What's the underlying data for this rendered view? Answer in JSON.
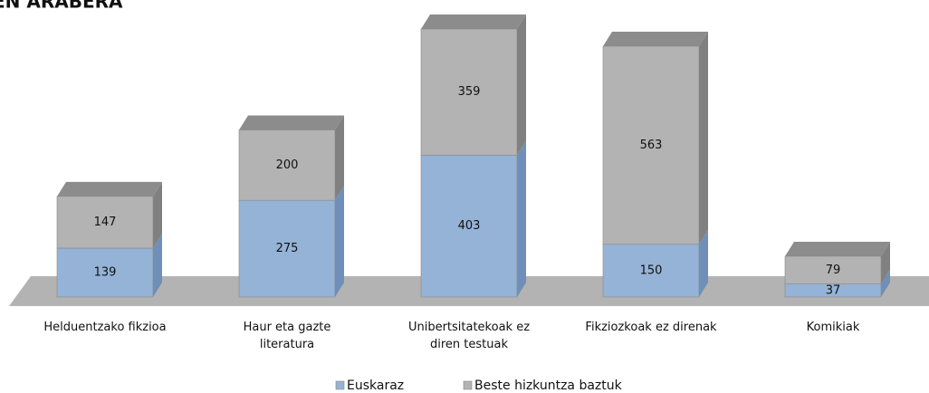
{
  "chart_data": {
    "type": "stacked-bar-3d",
    "title": "EN ARABERA",
    "categories": [
      "Helduentzako fikzioa",
      "Haur eta gazte literatura",
      "Unibertsitatekoak ez diren testuak",
      "Fikziozkoak ez direnak",
      "Komikiak"
    ],
    "series": [
      {
        "name": "Euskaraz",
        "color": "#95b3d7",
        "values": [
          139,
          275,
          403,
          150,
          37
        ]
      },
      {
        "name": "Beste hizkuntza baztuk",
        "color": "#b3b3b3",
        "values": [
          147,
          200,
          359,
          563,
          79
        ]
      }
    ],
    "legend": "bottom"
  }
}
